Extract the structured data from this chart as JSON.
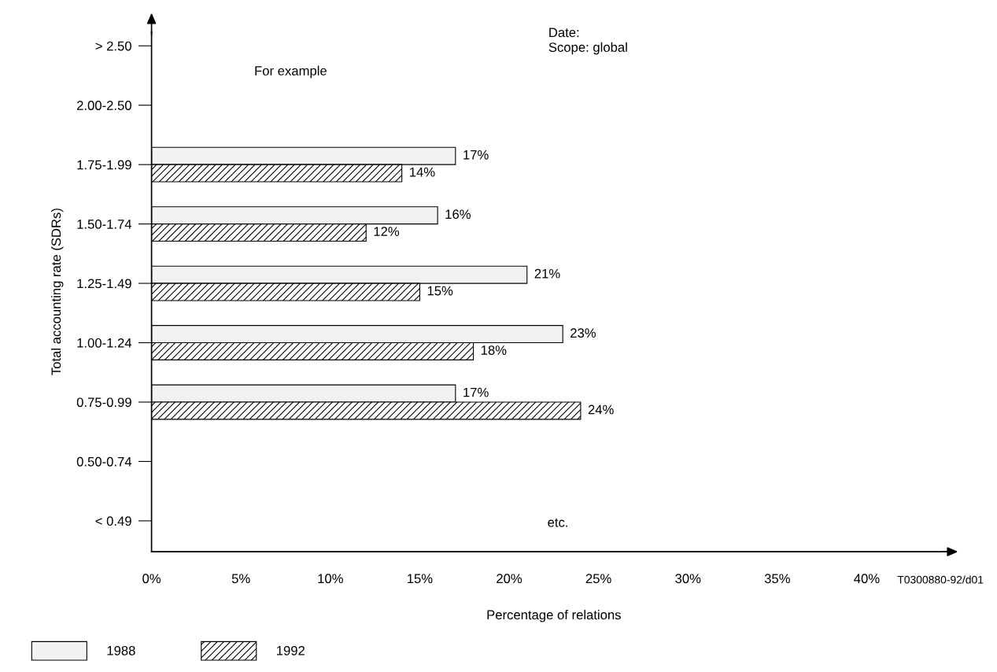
{
  "chart_data": {
    "type": "bar",
    "orientation": "horizontal",
    "xlabel": "Percentage of relations",
    "ylabel": "Total accounting rate (SDRs)",
    "categories": [
      "> 2.50",
      "2.00-2.50",
      "1.75-1.99",
      "1.50-1.74",
      "1.25-1.49",
      "1.00-1.24",
      "0.75-0.99",
      "0.50-0.74",
      "< 0.49"
    ],
    "series": [
      {
        "name": "1988",
        "color": "#f2f2f2",
        "values": [
          null,
          null,
          17,
          16,
          21,
          23,
          17,
          null,
          null
        ],
        "value_labels": [
          null,
          null,
          "17%",
          "16%",
          "21%",
          "23%",
          "17%",
          null,
          null
        ]
      },
      {
        "name": "1992",
        "color": "#000000",
        "values": [
          null,
          null,
          14,
          12,
          15,
          18,
          24,
          null,
          null
        ],
        "value_labels": [
          null,
          null,
          "14%",
          "12%",
          "15%",
          "18%",
          "24%",
          null,
          null
        ]
      }
    ],
    "xlim": [
      0,
      45
    ],
    "xticks": [
      {
        "value": 0,
        "label": "0%"
      },
      {
        "value": 5,
        "label": "5%"
      },
      {
        "value": 10,
        "label": "10%"
      },
      {
        "value": 15,
        "label": "15%"
      },
      {
        "value": 20,
        "label": "20%"
      },
      {
        "value": 25,
        "label": "25%"
      },
      {
        "value": 30,
        "label": "30%"
      },
      {
        "value": 35,
        "label": "35%"
      },
      {
        "value": 40,
        "label": "40%"
      }
    ],
    "annotations": [
      "Date:",
      "Scope: global",
      "For example",
      "etc.",
      "T0300880-92/d01"
    ],
    "grid": false,
    "legend": "bottom left"
  }
}
